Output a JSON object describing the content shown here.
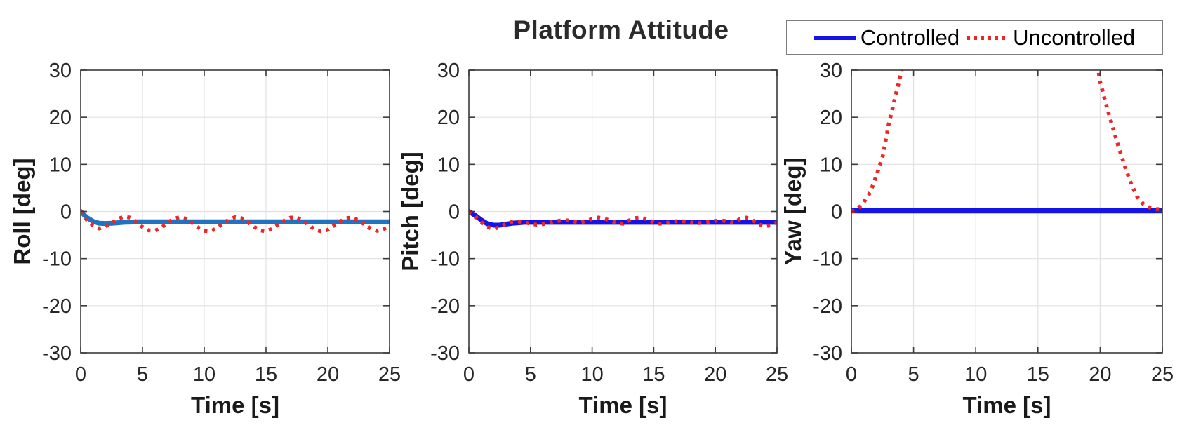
{
  "figure": {
    "title": "Platform Attitude",
    "legend": {
      "entries": [
        {
          "label": "Controlled",
          "style": "solid",
          "color": "#1414e8"
        },
        {
          "label": "Uncontrolled",
          "style": "dotted",
          "color": "#f02525"
        }
      ]
    },
    "colors": {
      "grid": "#e1e1e1",
      "axis_box": "#3a3a3a",
      "tick_label": "#262626",
      "axis_label": "#1a1a1a"
    }
  },
  "chart_data": [
    {
      "type": "line",
      "name": "roll",
      "xlabel": "Time [s]",
      "ylabel": "Roll [deg]",
      "xlim": [
        0,
        25
      ],
      "ylim": [
        -30,
        30
      ],
      "xticks": [
        0,
        5,
        10,
        15,
        20,
        25
      ],
      "yticks": [
        -30,
        -20,
        -10,
        0,
        10,
        20,
        30
      ],
      "grid": true,
      "series": [
        {
          "name": "Controlled",
          "style": "solid",
          "color": "#2173c2",
          "width": 7,
          "t_start": 0,
          "t_step": 0.5,
          "y": [
            0,
            -1.3,
            -2.1,
            -2.5,
            -2.55,
            -2.5,
            -2.4,
            -2.3,
            -2.25,
            -2.2,
            -2.2,
            -2.2,
            -2.2,
            -2.2,
            -2.2,
            -2.2,
            -2.2,
            -2.2,
            -2.2,
            -2.2,
            -2.2,
            -2.2,
            -2.2,
            -2.2,
            -2.2,
            -2.2,
            -2.2,
            -2.2,
            -2.2,
            -2.2,
            -2.2,
            -2.2,
            -2.2,
            -2.2,
            -2.2,
            -2.2,
            -2.2,
            -2.2,
            -2.2,
            -2.2,
            -2.2,
            -2.2,
            -2.2,
            -2.2,
            -2.2,
            -2.2,
            -2.2,
            -2.2,
            -2.2,
            -2.2,
            -2.2
          ]
        },
        {
          "name": "Uncontrolled",
          "style": "dotted",
          "color": "#f02525",
          "width": 5.5,
          "t_start": 0,
          "t_step": 0.5,
          "y": [
            0,
            -1.8,
            -3.0,
            -3.6,
            -3.2,
            -2.4,
            -1.6,
            -1.1,
            -1.3,
            -2.2,
            -3.3,
            -4.0,
            -4.1,
            -3.5,
            -2.5,
            -1.6,
            -1.2,
            -1.5,
            -2.4,
            -3.4,
            -4.1,
            -4.2,
            -3.6,
            -2.6,
            -1.7,
            -1.2,
            -1.4,
            -2.2,
            -3.2,
            -4.0,
            -4.2,
            -3.7,
            -2.8,
            -1.9,
            -1.3,
            -1.3,
            -2.0,
            -3.0,
            -3.9,
            -4.2,
            -3.9,
            -3.0,
            -2.1,
            -1.4,
            -1.3,
            -1.9,
            -2.8,
            -3.7,
            -4.1,
            -3.8,
            -3.0
          ]
        }
      ]
    },
    {
      "type": "line",
      "name": "pitch",
      "xlabel": "Time [s]",
      "ylabel": "Pitch [deg]",
      "xlim": [
        0,
        25
      ],
      "ylim": [
        -30,
        30
      ],
      "xticks": [
        0,
        5,
        10,
        15,
        20,
        25
      ],
      "yticks": [
        -30,
        -20,
        -10,
        0,
        10,
        20,
        30
      ],
      "grid": true,
      "series": [
        {
          "name": "Controlled",
          "style": "solid",
          "color": "#1414e8",
          "width": 7,
          "t_start": 0,
          "t_step": 0.5,
          "y": [
            0,
            -0.8,
            -1.8,
            -2.6,
            -2.9,
            -2.9,
            -2.7,
            -2.5,
            -2.4,
            -2.3,
            -2.3,
            -2.3,
            -2.3,
            -2.3,
            -2.3,
            -2.3,
            -2.3,
            -2.3,
            -2.3,
            -2.3,
            -2.3,
            -2.3,
            -2.3,
            -2.3,
            -2.3,
            -2.3,
            -2.3,
            -2.3,
            -2.3,
            -2.3,
            -2.3,
            -2.3,
            -2.3,
            -2.3,
            -2.3,
            -2.3,
            -2.3,
            -2.3,
            -2.3,
            -2.3,
            -2.3,
            -2.3,
            -2.3,
            -2.3,
            -2.3,
            -2.3,
            -2.3,
            -2.3,
            -2.3,
            -2.3,
            -2.3
          ]
        },
        {
          "name": "Uncontrolled",
          "style": "dotted",
          "color": "#f02525",
          "width": 5.5,
          "t_start": 0,
          "t_step": 0.5,
          "y": [
            0,
            -1.0,
            -2.2,
            -3.3,
            -3.7,
            -3.3,
            -2.6,
            -2.2,
            -2.1,
            -2.3,
            -2.6,
            -2.8,
            -2.7,
            -2.4,
            -2.1,
            -1.9,
            -1.9,
            -2.1,
            -2.4,
            -2.0,
            -1.6,
            -1.3,
            -1.5,
            -2.0,
            -2.4,
            -2.6,
            -1.9,
            -1.4,
            -1.3,
            -1.7,
            -2.3,
            -2.6,
            -2.5,
            -2.2,
            -2.0,
            -2.1,
            -2.3,
            -2.5,
            -2.4,
            -2.2,
            -2.0,
            -1.9,
            -2.1,
            -2.4,
            -1.6,
            -1.3,
            -1.8,
            -2.7,
            -3.2,
            -2.9,
            -2.3
          ]
        }
      ]
    },
    {
      "type": "line",
      "name": "yaw",
      "xlabel": "Time [s]",
      "ylabel": "Yaw [deg]",
      "xlim": [
        0,
        25
      ],
      "ylim": [
        -30,
        30
      ],
      "xticks": [
        0,
        5,
        10,
        15,
        20,
        25
      ],
      "yticks": [
        -30,
        -20,
        -10,
        0,
        10,
        20,
        30
      ],
      "grid": true,
      "series": [
        {
          "name": "Controlled",
          "style": "solid",
          "color": "#1414e8",
          "width": 8,
          "t_start": 0,
          "t_step": 25,
          "y": [
            0.2,
            0.2
          ]
        },
        {
          "name": "Uncontrolled",
          "style": "dotted",
          "color": "#f02525",
          "width": 5.5,
          "t_start": 0,
          "t_step": 0.5,
          "y": [
            0,
            0.5,
            2,
            4,
            7.5,
            11.5,
            18.5,
            24,
            29.5,
            36,
            45,
            55,
            70,
            100,
            100,
            100,
            100,
            100,
            100,
            100,
            100,
            100,
            100,
            100,
            100,
            100,
            100,
            100,
            100,
            100,
            100,
            100,
            100,
            100,
            100,
            100,
            100,
            100,
            60,
            36,
            27.5,
            22.5,
            18,
            13.5,
            9.5,
            5.8,
            3,
            1.5,
            0.8,
            0.5,
            0.5
          ]
        }
      ]
    }
  ]
}
